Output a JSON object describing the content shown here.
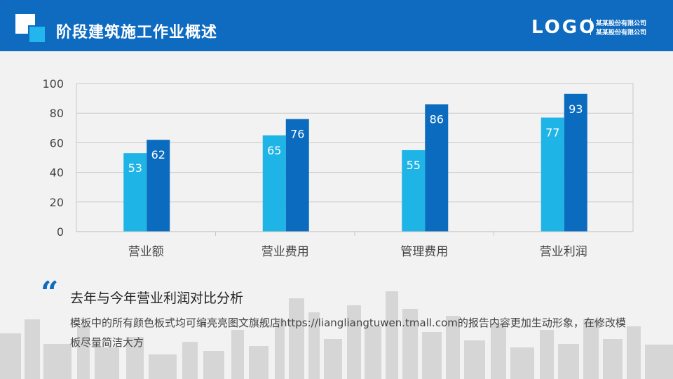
{
  "header": {
    "title": "阶段建筑施工作业概述",
    "logo_text": "LOGO",
    "company_line1": "某某股份有限公司",
    "company_line2": "某某股份有限公司"
  },
  "colors": {
    "header": "#0e6bbf",
    "series1": "#1fb4e6",
    "series2": "#0b6cbf"
  },
  "chart_data": {
    "type": "bar",
    "categories": [
      "营业额",
      "营业费用",
      "管理费用",
      "营业利润"
    ],
    "series": [
      {
        "values": [
          53,
          65,
          55,
          77
        ]
      },
      {
        "values": [
          62,
          76,
          86,
          93
        ]
      }
    ],
    "yticks": [
      0,
      20,
      40,
      60,
      80,
      100
    ],
    "ylim": [
      0,
      100
    ],
    "grid": true,
    "legend": false
  },
  "summary": {
    "quote_icon": "quote-icon",
    "title": "去年与今年营业利润对比分析",
    "text": "模板中的所有颜色板式均可编亮亮图文旗舰店https://liangliangtuwen.tmall.com的报告内容更加生动形象，在修改模板尽量简洁大方"
  }
}
